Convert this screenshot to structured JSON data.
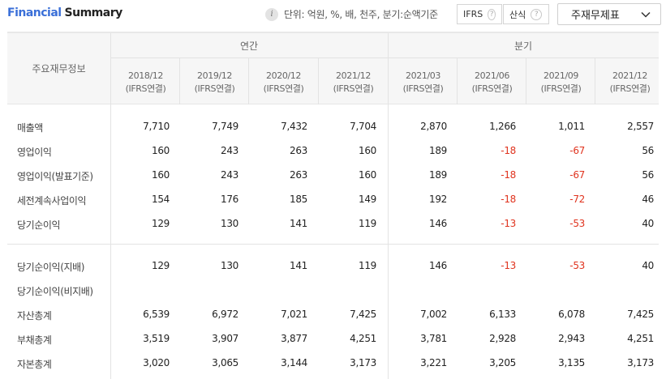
{
  "header": {
    "title_blue": "Financial",
    "title_dark": "Summary",
    "unit_text": "단위: 억원, %, 배, 천주, 분기:순액기준",
    "toggle_ifrs": "IFRS",
    "toggle_calc": "산식",
    "help_glyph": "?",
    "statement_select": "주재무제표"
  },
  "table": {
    "corner_label": "주요재무정보",
    "group_annual": "연간",
    "group_quarter": "분기",
    "periods": [
      {
        "date": "2018/12",
        "basis": "(IFRS연결)"
      },
      {
        "date": "2019/12",
        "basis": "(IFRS연결)"
      },
      {
        "date": "2020/12",
        "basis": "(IFRS연결)"
      },
      {
        "date": "2021/12",
        "basis": "(IFRS연결)"
      },
      {
        "date": "2021/03",
        "basis": "(IFRS연결)"
      },
      {
        "date": "2021/06",
        "basis": "(IFRS연결)"
      },
      {
        "date": "2021/09",
        "basis": "(IFRS연결)"
      },
      {
        "date": "2021/12",
        "basis": "(IFRS연결)"
      }
    ],
    "rows": [
      {
        "label": "매출액",
        "values": [
          "7,710",
          "7,749",
          "7,432",
          "7,704",
          "2,870",
          "1,266",
          "1,011",
          "2,557"
        ]
      },
      {
        "label": "영업이익",
        "values": [
          "160",
          "243",
          "263",
          "160",
          "189",
          "-18",
          "-67",
          "56"
        ]
      },
      {
        "label": "영업이익(발표기준)",
        "values": [
          "160",
          "243",
          "263",
          "160",
          "189",
          "-18",
          "-67",
          "56"
        ]
      },
      {
        "label": "세전계속사업이익",
        "values": [
          "154",
          "176",
          "185",
          "149",
          "192",
          "-18",
          "-72",
          "46"
        ]
      },
      {
        "label": "당기순이익",
        "values": [
          "129",
          "130",
          "141",
          "119",
          "146",
          "-13",
          "-53",
          "40"
        ]
      },
      {
        "label": "당기순이익(지배)",
        "values": [
          "129",
          "130",
          "141",
          "119",
          "146",
          "-13",
          "-53",
          "40"
        ]
      },
      {
        "label": "당기순이익(비지배)",
        "values": [
          "",
          "",
          "",
          "",
          "",
          "",
          "",
          ""
        ]
      },
      {
        "label": "자산총계",
        "values": [
          "6,539",
          "6,972",
          "7,021",
          "7,425",
          "7,002",
          "6,133",
          "6,078",
          "7,425"
        ]
      },
      {
        "label": "부채총계",
        "values": [
          "3,519",
          "3,907",
          "3,877",
          "4,251",
          "3,781",
          "2,928",
          "2,943",
          "4,251"
        ]
      },
      {
        "label": "자본총계",
        "values": [
          "3,020",
          "3,065",
          "3,144",
          "3,173",
          "3,221",
          "3,205",
          "3,135",
          "3,173"
        ]
      }
    ]
  },
  "colors": {
    "title_blue": "#3a6fd8",
    "negative": "#e0341f",
    "header_bg": "#f6f6f6"
  }
}
